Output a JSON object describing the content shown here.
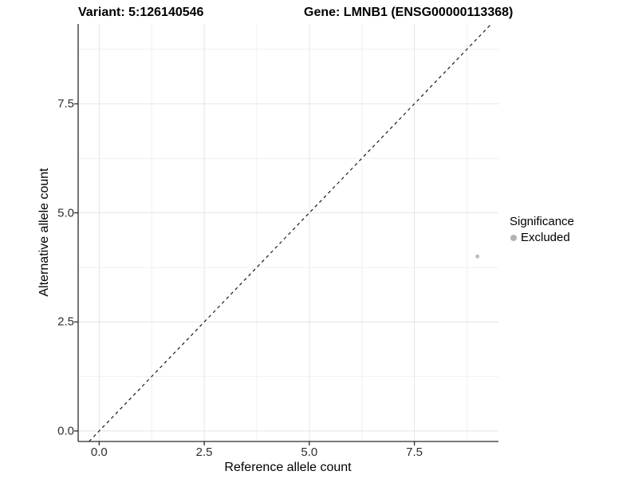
{
  "titles": {
    "variant": "Variant: 5:126140546",
    "gene": "Gene: LMNB1 (ENSG00000113368)"
  },
  "axes": {
    "x": {
      "label": "Reference allele count"
    },
    "y": {
      "label": "Alternative allele count"
    }
  },
  "legend": {
    "title": "Significance",
    "items": [
      {
        "label": "Excluded",
        "color": "#b3b3b3"
      }
    ]
  },
  "colors": {
    "axis_line": "#2a2a2a",
    "major_grid": "#e4e4e4",
    "minor_grid": "#f1f1f1",
    "reference_line": "#1a1a1a",
    "point": "#bdbdbd"
  },
  "chart_data": {
    "type": "scatter",
    "title": "Variant: 5:126140546   Gene: LMNB1 (ENSG00000113368)",
    "xlabel": "Reference allele count",
    "ylabel": "Alternative allele count",
    "xlim": [
      -0.5,
      9.5
    ],
    "ylim": [
      -0.24,
      9.33
    ],
    "x_ticks": [
      0.0,
      2.5,
      5.0,
      7.5
    ],
    "y_ticks": [
      0.0,
      2.5,
      5.0,
      7.5
    ],
    "x_minor_ticks": [
      1.25,
      3.75,
      6.25,
      8.75
    ],
    "y_minor_ticks": [
      1.25,
      3.75,
      6.25,
      8.75
    ],
    "grid": true,
    "legend_position": "right",
    "reference_line": {
      "type": "identity",
      "style": "dashed",
      "equation": "y = x"
    },
    "series": [
      {
        "name": "Excluded",
        "color": "#bdbdbd",
        "points": [
          {
            "x": 9,
            "y": 4
          }
        ]
      }
    ]
  }
}
